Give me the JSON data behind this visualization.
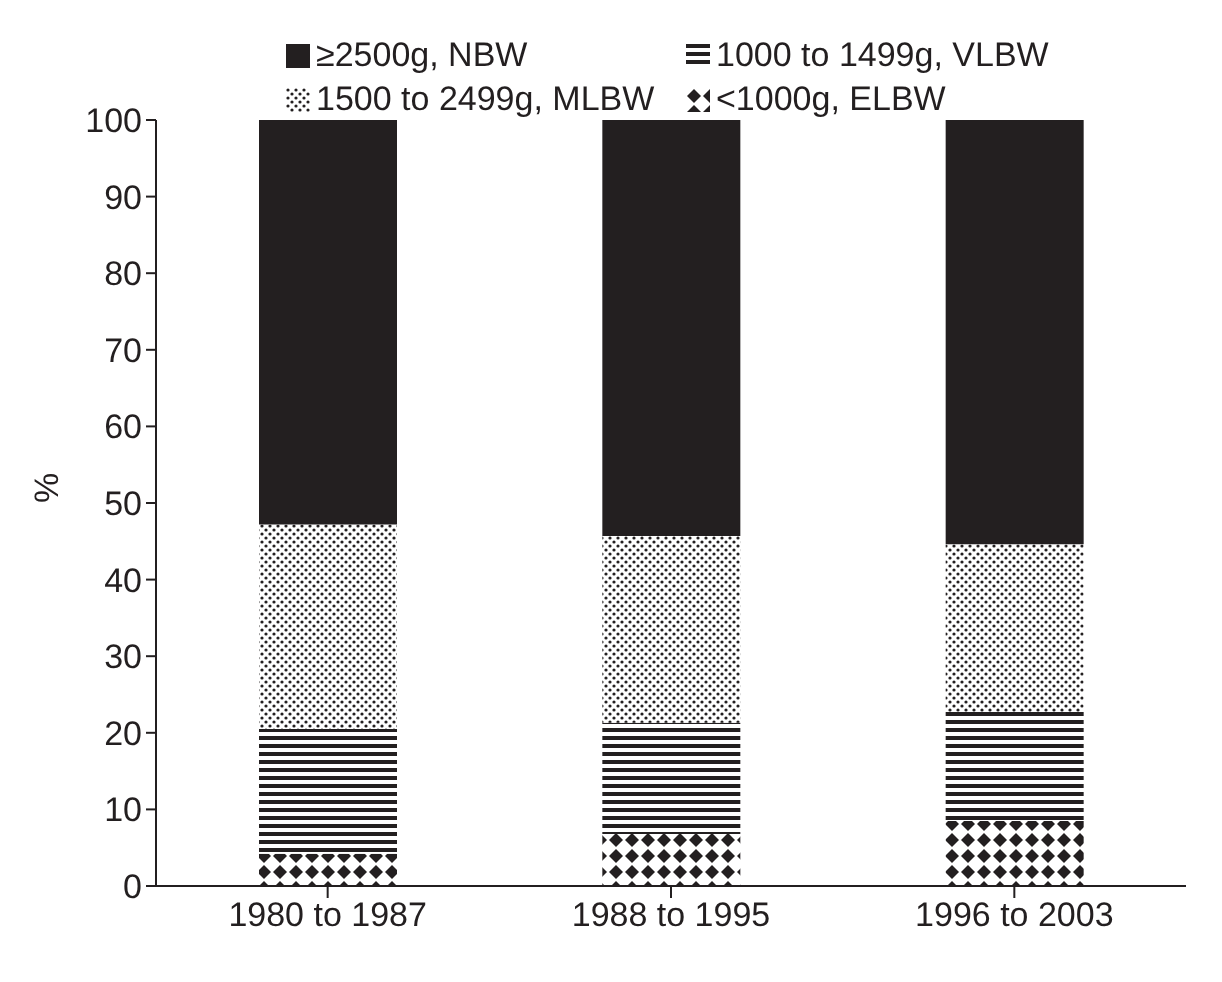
{
  "chart_data": {
    "type": "bar",
    "stacked": true,
    "ylabel": "%",
    "categories": [
      "1980 to 1987",
      "1988 to 1995",
      "1996 to 2003"
    ],
    "series": [
      {
        "name": "<1000g, ELBW",
        "color": "#231f20",
        "values": [
          4.2,
          6.8,
          8.5
        ]
      },
      {
        "name": "1000 to 1499g, VLBW",
        "color": "#231f20",
        "values": [
          16.3,
          14.5,
          14.2
        ]
      },
      {
        "name": "1500 to 2499g, MLBW",
        "color": "#231f20",
        "values": [
          26.7,
          24.4,
          21.9
        ]
      },
      {
        "name": "≥2500g, NBW",
        "color": "#231f20",
        "values": [
          52.8,
          54.3,
          55.4
        ]
      }
    ],
    "ylim": [
      0,
      100
    ],
    "yticks": [
      0,
      10,
      20,
      30,
      40,
      50,
      60,
      70,
      80,
      90,
      100
    ],
    "legend": "top",
    "grid": false
  }
}
